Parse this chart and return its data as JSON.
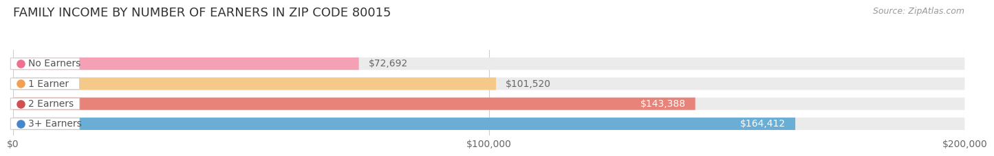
{
  "title": "FAMILY INCOME BY NUMBER OF EARNERS IN ZIP CODE 80015",
  "source": "Source: ZipAtlas.com",
  "categories": [
    "No Earners",
    "1 Earner",
    "2 Earners",
    "3+ Earners"
  ],
  "values": [
    72692,
    101520,
    143388,
    164412
  ],
  "bar_colors": [
    "#f4a0b5",
    "#f5c98a",
    "#e8837a",
    "#6aadd5"
  ],
  "dot_colors": [
    "#f07090",
    "#f0a050",
    "#d05050",
    "#4488cc"
  ],
  "bar_background": "#ebebeb",
  "xlim": [
    0,
    200000
  ],
  "xticks": [
    0,
    100000,
    200000
  ],
  "xtick_labels": [
    "$0",
    "$100,000",
    "$200,000"
  ],
  "background_color": "#ffffff",
  "title_fontsize": 13,
  "label_fontsize": 10,
  "source_fontsize": 9,
  "value_threshold": 120000
}
